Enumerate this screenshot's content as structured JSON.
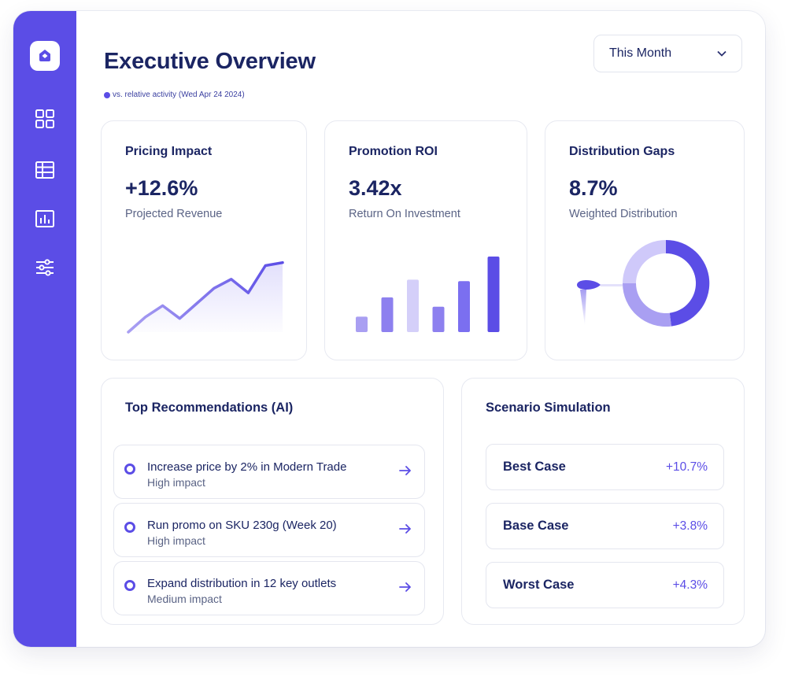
{
  "colors": {
    "accent": "#5b4de6",
    "accent_light": "#a99ff2",
    "accent_pale": "#cfc9fa",
    "text_dark": "#1b2563"
  },
  "sidebar": {
    "icons": [
      "app-logo-icon",
      "dashboard-grid-icon",
      "table-icon",
      "bar-chart-icon",
      "sliders-icon"
    ]
  },
  "header": {
    "title": "Executive Overview",
    "subtitle": "vs. relative activity (Wed Apr 24 2024)",
    "period_select": {
      "selected": "This Month"
    }
  },
  "kpis": [
    {
      "title": "Pricing Impact",
      "value": "+12.6%",
      "subtitle": "Projected Revenue"
    },
    {
      "title": "Promotion ROI",
      "value": "3.42x",
      "subtitle": "Return On Investment"
    },
    {
      "title": "Distribution Gaps",
      "value": "8.7%",
      "subtitle": "Weighted Distribution"
    }
  ],
  "recommendations": {
    "title": "Top Recommendations (AI)",
    "items": [
      {
        "title": "Increase price by 2% in Modern Trade",
        "impact": "High impact"
      },
      {
        "title": "Run promo on SKU 230g (Week 20)",
        "impact": "High impact"
      },
      {
        "title": "Expand distribution in 12 key outlets",
        "impact": "Medium impact"
      }
    ]
  },
  "scenarios": {
    "title": "Scenario Simulation",
    "items": [
      {
        "name": "Best Case",
        "value": "+10.7%"
      },
      {
        "name": "Base Case",
        "value": "+3.8%"
      },
      {
        "name": "Worst Case",
        "value": "+4.3%"
      }
    ]
  },
  "chart_data": [
    {
      "type": "line",
      "x": [
        1,
        2,
        3,
        4,
        5,
        6,
        7,
        8,
        9,
        10
      ],
      "values": [
        0,
        20,
        35,
        18,
        38,
        58,
        70,
        52,
        88,
        92
      ],
      "ylim": [
        0,
        100
      ]
    },
    {
      "type": "bar",
      "categories": [
        "1",
        "2",
        "3",
        "4",
        "5",
        "6"
      ],
      "values": [
        20,
        45,
        68,
        33,
        66,
        98
      ],
      "ylim": [
        0,
        100
      ]
    },
    {
      "type": "pie",
      "labels": [
        "A",
        "B",
        "C"
      ],
      "values": [
        48,
        27,
        25
      ]
    }
  ]
}
